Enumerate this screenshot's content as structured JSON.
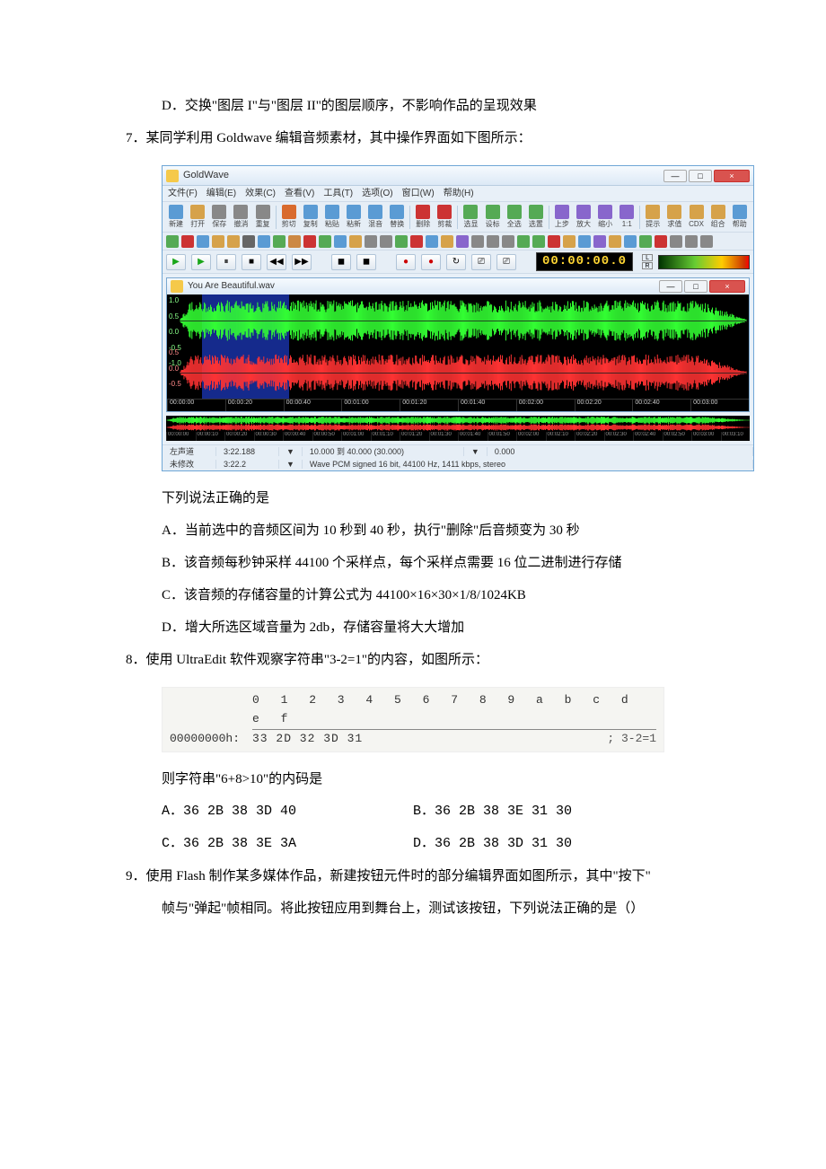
{
  "q6_optD": "D．交换\"图层 I\"与\"图层 II\"的图层顺序，不影响作品的呈现效果",
  "q7_stem": "7．某同学利用 Goldwave 编辑音频素材，其中操作界面如下图所示：",
  "q7_post": "下列说法正确的是",
  "q7_A": "A．当前选中的音频区间为 10 秒到 40 秒，执行\"删除\"后音频变为 30 秒",
  "q7_B": "B．该音频每秒钟采样 44100 个采样点，每个采样点需要 16 位二进制进行存储",
  "q7_C": "C．该音频的存储容量的计算公式为 44100×16×30×1/8/1024KB",
  "q7_D": "D．增大所选区域音量为 2db，存储容量将大大增加",
  "q8_stem": "8．使用 UltraEdit 软件观察字符串\"3-2=1\"的内容，如图所示：",
  "q8_post": "则字符串\"6+8>10\"的内码是",
  "q8_A": "A．36  2B  38  3D  40",
  "q8_B": "B．36  2B  38  3E  31  30",
  "q8_C": "C．36  2B  38  3E  3A",
  "q8_D": "D．36  2B  38  3D  31  30",
  "q9_a": "9．使用 Flash 制作某多媒体作品，新建按钮元件时的部分编辑界面如图所示，其中\"按下\"",
  "q9_b": "帧与\"弹起\"帧相同。将此按钮应用到舞台上，测试该按钮，下列说法正确的是（）",
  "goldwave": {
    "app_title": "GoldWave",
    "menus": [
      "文件(F)",
      "编辑(E)",
      "效果(C)",
      "查看(V)",
      "工具(T)",
      "选项(O)",
      "窗口(W)",
      "帮助(H)"
    ],
    "window_buttons": {
      "min": "—",
      "max": "□",
      "close": "×"
    },
    "toolbar_main": [
      {
        "label": "新建",
        "color": "#5a9bd4"
      },
      {
        "label": "打开",
        "color": "#d6a24a"
      },
      {
        "label": "保存",
        "color": "#888888"
      },
      {
        "label": "撤消",
        "color": "#888888"
      },
      {
        "label": "重复",
        "color": "#888888"
      },
      {
        "label": "剪切",
        "color": "#d96b2e"
      },
      {
        "label": "复制",
        "color": "#5a9bd4"
      },
      {
        "label": "粘贴",
        "color": "#5a9bd4"
      },
      {
        "label": "粘新",
        "color": "#5a9bd4"
      },
      {
        "label": "混音",
        "color": "#5a9bd4"
      },
      {
        "label": "替换",
        "color": "#5a9bd4"
      },
      {
        "label": "删除",
        "color": "#cc3333"
      },
      {
        "label": "剪裁",
        "color": "#cc3333"
      },
      {
        "label": "选显",
        "color": "#55aa55"
      },
      {
        "label": "设标",
        "color": "#55aa55"
      },
      {
        "label": "全选",
        "color": "#55aa55"
      },
      {
        "label": "选置",
        "color": "#55aa55"
      },
      {
        "label": "上步",
        "color": "#8866cc"
      },
      {
        "label": "放大",
        "color": "#8866cc"
      },
      {
        "label": "缩小",
        "color": "#8866cc"
      },
      {
        "label": "1:1",
        "color": "#8866cc"
      },
      {
        "label": "提示",
        "color": "#d6a24a"
      },
      {
        "label": "求值",
        "color": "#d6a24a"
      },
      {
        "label": "CDX",
        "color": "#d6a24a"
      },
      {
        "label": "组合",
        "color": "#d6a24a"
      },
      {
        "label": "帮助",
        "color": "#5a9bd4"
      }
    ],
    "toolbar2_colors": [
      "#55aa55",
      "#cc3333",
      "#5a9bd4",
      "#d6a24a",
      "#d6a24a",
      "#666",
      "#5a9bd4",
      "#55aa55",
      "#cc8844",
      "#cc3333",
      "#55aa55",
      "#5a9bd4",
      "#d6a24a",
      "#888",
      "#888",
      "#55aa55",
      "#cc3333",
      "#5a9bd4",
      "#d6a24a",
      "#8866cc",
      "#888",
      "#888",
      "#888",
      "#55aa55",
      "#55aa55",
      "#cc3333",
      "#d6a24a",
      "#5a9bd4",
      "#8866cc",
      "#d6a24a",
      "#5a9bd4",
      "#55aa55",
      "#cc3333",
      "#888",
      "#888",
      "#888"
    ],
    "transport": {
      "play": "▶",
      "play2": "▶",
      "pause": "⏸",
      "stop": "■",
      "rew": "◀◀",
      "ff": "▶▶",
      "marker1": "◼",
      "marker2": "◼",
      "rec": "●",
      "rec2": "●",
      "loop": "↻",
      "v1": "⎚",
      "v2": "⎚",
      "timecode": "00:00:00.0",
      "L": "L",
      "R": "R"
    },
    "inner_title": "You Are Beautiful.wav",
    "inner_buttons": {
      "min": "—",
      "max": "□",
      "close": "×"
    },
    "amp_labels_green": [
      "1.0",
      "0.5",
      "0.0",
      "-0.5",
      "-1.0"
    ],
    "amp_labels_red": [
      "0.5",
      "0.0",
      "-0.5"
    ],
    "ruler_main": [
      "00:00:00",
      "00:00:20",
      "00:00:40",
      "00:01:00",
      "00:01:20",
      "00:01:40",
      "00:02:00",
      "00:02:20",
      "00:02:40",
      "00:03:00"
    ],
    "ruler_overview": [
      "00:00:00",
      "00:00:10",
      "00:00:20",
      "00:00:30",
      "00:00:40",
      "00:00:50",
      "00:01:00",
      "00:01:10",
      "00:01:20",
      "00:01:30",
      "00:01:40",
      "00:01:50",
      "00:02:00",
      "00:02:10",
      "00:02:20",
      "00:02:30",
      "00:02:40",
      "00:02:50",
      "00:03:00",
      "00:03:10"
    ],
    "status": {
      "r1c1": "左声道",
      "r1c2": "3:22.188",
      "r1arrow": "▼",
      "r1c3": "10.000 到 40.000 (30.000)",
      "r1c4": "0.000",
      "r2c1": "未修改",
      "r2c2": "3:22.2",
      "r2arrow": "▼",
      "r2c3": "Wave PCM signed 16 bit, 44100 Hz, 1411 kbps, stereo"
    },
    "colors": {
      "wave_green": "#33ff33",
      "wave_red": "#ff3333",
      "selection": "#2e4bd6",
      "wave_bg": "#000000"
    }
  },
  "ultraedit": {
    "ruler_cols": "0 1 2 3 4 5 6 7 8 9 a b c d e f",
    "addr": "00000000h:",
    "hex": "33 2D 32 3D 31",
    "ascii_prefix": ";  ",
    "ascii": "3-2=1"
  }
}
